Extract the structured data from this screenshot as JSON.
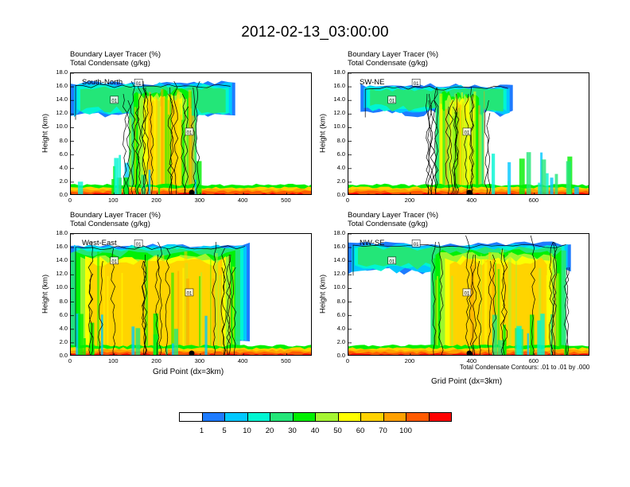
{
  "title": "2012-02-13_03:00:00",
  "panel_title_line1": "Boundary Layer Tracer    (%)",
  "panel_title_line2": "Total Condensate    (g/kg)",
  "ylabel": "Height (km)",
  "xlabel": "Grid Point (dx=3km)",
  "contour_note": "Total Condensate Contours: .01 to .01 by .000",
  "contour_label": "01",
  "colors": [
    "#ffffff",
    "#1e7bff",
    "#00c8ff",
    "#00f5d2",
    "#23e678",
    "#00f000",
    "#a5f532",
    "#ffff00",
    "#ffd200",
    "#ffa000",
    "#ff5a00",
    "#ff0000"
  ],
  "colorbar_labels": [
    "1",
    "5",
    "10",
    "20",
    "30",
    "40",
    "50",
    "60",
    "70",
    "100"
  ],
  "chart_data": [
    {
      "type": "heatmap",
      "label": "South-North",
      "xlim": [
        0,
        560
      ],
      "ylim": [
        0,
        18
      ],
      "xticks": [
        "0",
        "100",
        "200",
        "300",
        "400",
        "500"
      ],
      "yticks": [
        "0.0",
        "2.0",
        "4.0",
        "6.0",
        "8.0",
        "10.0",
        "12.0",
        "14.0",
        "16.0",
        "18.0"
      ],
      "marker_x": 280
    },
    {
      "type": "heatmap",
      "label": "SW-NE",
      "xlim": [
        0,
        780
      ],
      "ylim": [
        0,
        18
      ],
      "xticks": [
        "0",
        "200",
        "400",
        "600"
      ],
      "yticks": [
        "0.0",
        "2.0",
        "4.0",
        "6.0",
        "8.0",
        "10.0",
        "12.0",
        "14.0",
        "16.0",
        "18.0"
      ],
      "marker_x": 390
    },
    {
      "type": "heatmap",
      "label": "West-East",
      "xlim": [
        0,
        560
      ],
      "ylim": [
        0,
        18
      ],
      "xticks": [
        "0",
        "100",
        "200",
        "300",
        "400",
        "500"
      ],
      "yticks": [
        "0.0",
        "2.0",
        "4.0",
        "6.0",
        "8.0",
        "10.0",
        "12.0",
        "14.0",
        "16.0",
        "18.0"
      ],
      "marker_x": 280
    },
    {
      "type": "heatmap",
      "label": "NW-SE",
      "xlim": [
        0,
        780
      ],
      "ylim": [
        0,
        18
      ],
      "xticks": [
        "0",
        "200",
        "400",
        "600"
      ],
      "yticks": [
        "0.0",
        "2.0",
        "4.0",
        "6.0",
        "8.0",
        "10.0",
        "12.0",
        "14.0",
        "16.0",
        "18.0"
      ],
      "marker_x": 390
    }
  ]
}
